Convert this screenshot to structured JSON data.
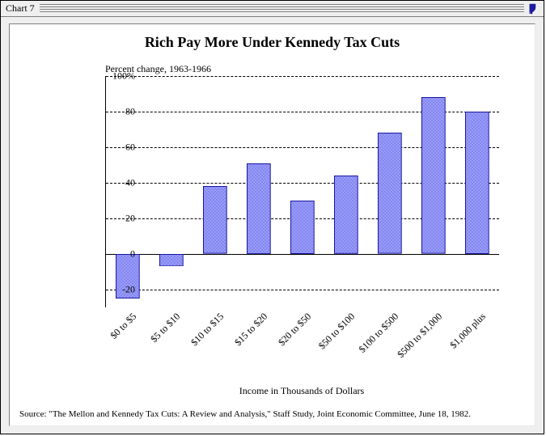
{
  "window": {
    "title": "Chart 7"
  },
  "chart": {
    "type": "bar",
    "title": "Rich Pay More Under Kennedy Tax Cuts",
    "title_fontsize": 18,
    "subtitle": "Percent change, 1963-1966",
    "subtitle_fontsize": 12,
    "categories": [
      "$0 to $5",
      "$5 to $10",
      "$10 to $15",
      "$15 to $20",
      "$20 to $50",
      "$50 to $100",
      "$100 to $500",
      "$500 to $1,000",
      "$1,000 plus"
    ],
    "values": [
      -25,
      -7,
      38,
      51,
      30,
      44,
      68,
      88,
      80
    ],
    "bar_fill": "#989cf8",
    "bar_border": "#1815a5",
    "bar_pattern_color": "#6868e0",
    "bar_width_ratio": 0.55,
    "xlabel": "Income in Thousands of Dollars",
    "ylim_min": -30,
    "ylim_max": 100,
    "yticks": [
      -20,
      0,
      20,
      40,
      60,
      80,
      100
    ],
    "ytick_labels": [
      "-20",
      "0",
      "20",
      "40",
      "60",
      "80",
      "100%"
    ],
    "label_fontsize": 12,
    "grid_color": "#000000",
    "grid_style": "dashed",
    "background_color": "#ffffff",
    "xlabel_rotation_deg": -45
  },
  "source": "Source: \"The Mellon and Kennedy Tax Cuts: A Review and Analysis,\" Staff Study, Joint Economic Committee,  June 18, 1982."
}
